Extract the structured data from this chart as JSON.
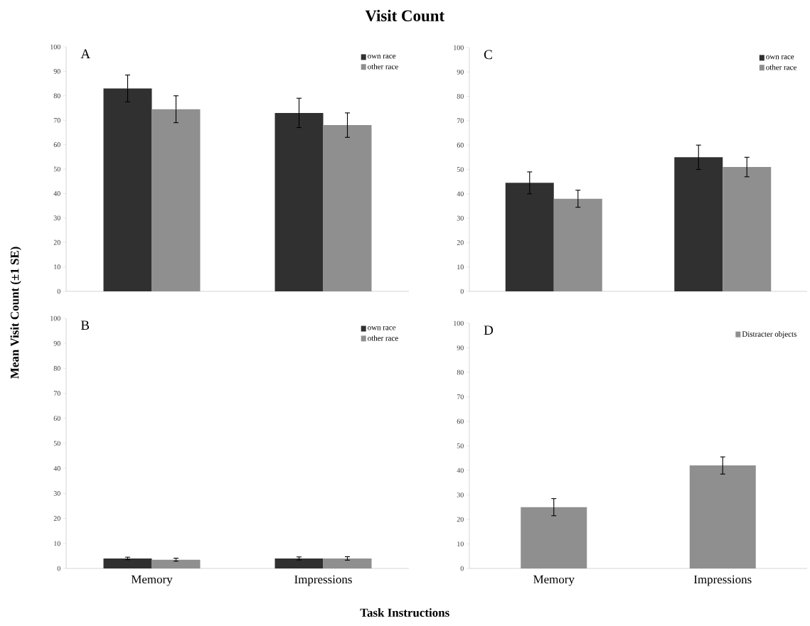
{
  "chart_data": [
    {
      "type": "bar",
      "title": "Visit Count",
      "subtitle": "A",
      "ylabel": "Mean Visit Count (±1 SE)",
      "xlabel": "Task Instructions",
      "categories": [
        null,
        null
      ],
      "series": [
        {
          "name": "own race",
          "color": "#303030",
          "values": [
            83,
            73
          ],
          "errors": [
            5.5,
            6
          ]
        },
        {
          "name": "other race",
          "color": "#8f8f8f",
          "values": [
            74.5,
            68
          ],
          "errors": [
            5.5,
            5
          ]
        }
      ],
      "ylim": [
        0,
        100
      ],
      "yticks": [
        0,
        10,
        20,
        30,
        40,
        50,
        60,
        70,
        80,
        90,
        100
      ],
      "legend": "top right",
      "tick_labels": "y"
    },
    {
      "type": "bar",
      "subtitle": "C",
      "categories": [
        null,
        null
      ],
      "series": [
        {
          "name": "own race",
          "color": "#303030",
          "values": [
            44.5,
            55
          ],
          "errors": [
            4.5,
            5
          ]
        },
        {
          "name": "other race",
          "color": "#8f8f8f",
          "values": [
            38,
            51
          ],
          "errors": [
            3.5,
            4
          ]
        }
      ],
      "ylim": [
        0,
        100
      ],
      "yticks": [
        0,
        10,
        20,
        30,
        40,
        50,
        60,
        70,
        80,
        90,
        100
      ],
      "legend": "top right",
      "tick_labels": "y"
    },
    {
      "type": "bar",
      "subtitle": "B",
      "categories": [
        "Memory",
        "Impressions"
      ],
      "series": [
        {
          "name": "own race",
          "color": "#303030",
          "values": [
            4,
            4
          ],
          "errors": [
            0.5,
            0.6
          ]
        },
        {
          "name": "other race",
          "color": "#8f8f8f",
          "values": [
            3.5,
            4
          ],
          "errors": [
            0.6,
            0.7
          ]
        }
      ],
      "ylim": [
        0,
        100
      ],
      "yticks": [
        0,
        10,
        20,
        30,
        40,
        50,
        60,
        70,
        80,
        90,
        100
      ],
      "legend": "top right"
    },
    {
      "type": "bar",
      "subtitle": "D",
      "categories": [
        "Memory",
        "Impressions"
      ],
      "series": [
        {
          "name": "Distracter objects",
          "color": "#8f8f8f",
          "values": [
            25,
            42
          ],
          "errors": [
            3.5,
            3.5
          ]
        }
      ],
      "ylim": [
        0,
        100
      ],
      "yticks": [
        0,
        10,
        20,
        30,
        40,
        50,
        60,
        70,
        80,
        90,
        100
      ],
      "legend": "top right"
    }
  ]
}
